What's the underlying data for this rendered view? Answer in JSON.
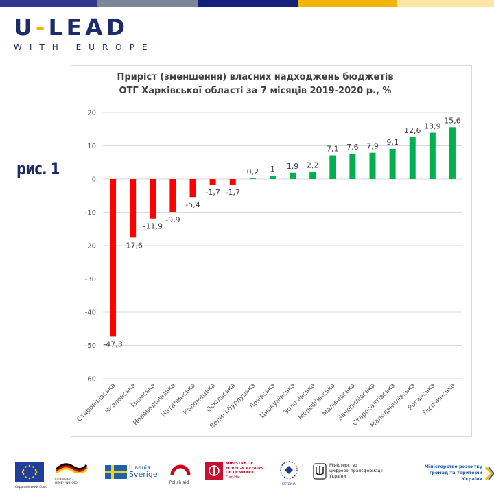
{
  "header": {
    "logo_main_a": "U",
    "logo_dash": "-",
    "logo_main_b": "LEAD",
    "logo_sub": "WITH EUROPE",
    "bar_colors": [
      "#2d3a8c",
      "#7b8797",
      "#14217a",
      "#f2b705",
      "#fbe6a8"
    ]
  },
  "figure_label": "рис. 1",
  "chart_data": {
    "type": "bar",
    "title": "Приріст (зменшення) власних надходжень бюджетів ОТГ Харківської області за 7 місяців 2019-2020 р., %",
    "title_lines": [
      "Приріст (зменшення) власних надходжень бюджетів",
      "ОТГ Харківської області за 7 місяців 2019-2020 р., %"
    ],
    "categories": [
      "Старовірівська",
      "Чкаловська",
      "Ізюмська",
      "Нововодолазька",
      "Наталинська",
      "Коломацька",
      "Оскільська",
      "Великобурлуцька",
      "Лозівська",
      "Циркунівська",
      "Золочівська",
      "Мереф'янська",
      "Малинівська",
      "Зачепилівська",
      "Старосалтівська",
      "Малоданилівська",
      "Роганська",
      "Пісочинська"
    ],
    "values": [
      -47.3,
      -17.6,
      -11.9,
      -9.9,
      -5.4,
      -1.7,
      -1.7,
      0.2,
      1,
      1.9,
      2.2,
      7.1,
      7.6,
      7.9,
      9.1,
      12.6,
      13.9,
      15.6
    ],
    "data_labels": [
      "-47,3",
      "-17,6",
      "-11,9",
      "-9,9",
      "-5,4",
      "-1,7",
      "-1,7",
      "0,2",
      "1",
      "1,9",
      "2,2",
      "7,1",
      "7,6",
      "7,9",
      "9,1",
      "12,6",
      "13,9",
      "15,6"
    ],
    "yticks": [
      20,
      10,
      0,
      -10,
      -20,
      -30,
      -40,
      -50,
      -60
    ],
    "ylim": [
      -60,
      20
    ],
    "xlabel": "",
    "ylabel": "",
    "grid": true,
    "negative_color": "#ff0000",
    "positive_color": "#00b050"
  },
  "footer": {
    "eu_caption": "Європейський Союз",
    "de_caption": "співпраця з НІМЕЧЧИНОЮ",
    "se_top": "Швеція",
    "se_bottom": "Sverige",
    "pl_caption": "Polish aid",
    "dk_line1": "MINISTRY OF",
    "dk_line2": "FOREIGN AFFAIRS",
    "dk_line3": "OF DENMARK",
    "dk_line4": "Danida",
    "ee_caption": "ESTONIA",
    "ua_digital_1": "Міністерство",
    "ua_digital_2": "цифрової трансформації",
    "ua_digital_3": "України",
    "ua_dev_1": "Міністерство розвитку",
    "ua_dev_2": "громад та територій України"
  }
}
